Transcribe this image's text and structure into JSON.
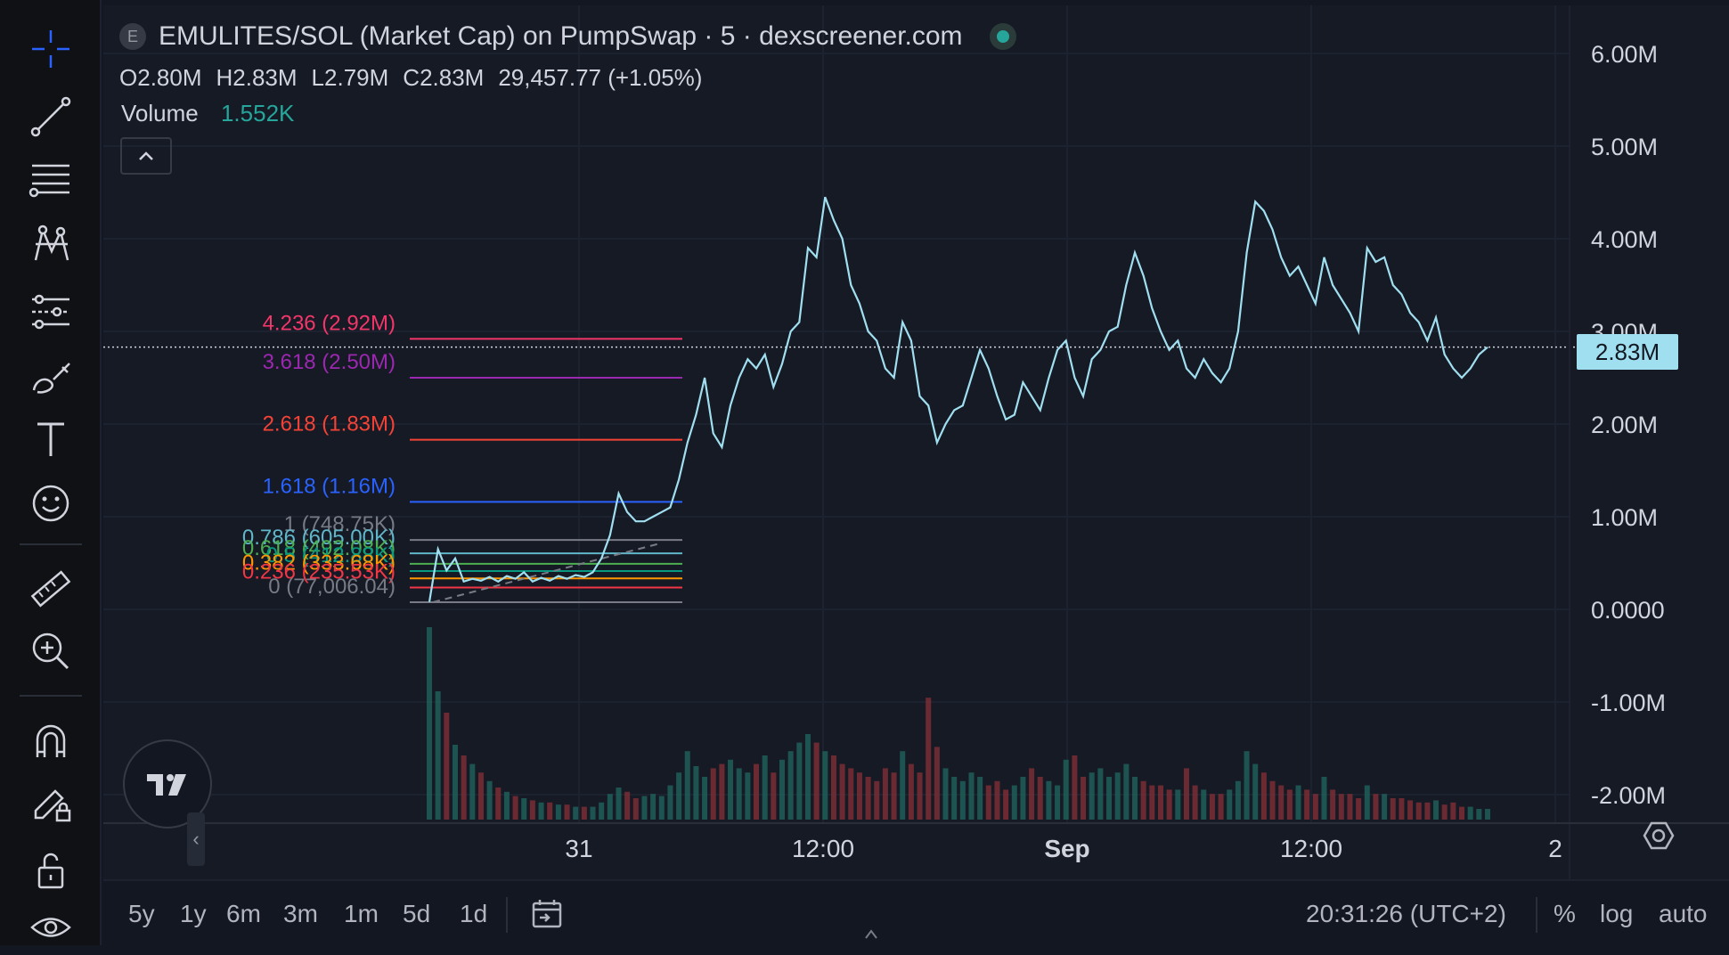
{
  "legend": {
    "badge": "E",
    "title": "EMULITES/SOL (Market Cap) on PumpSwap · 5 · dexscreener.com",
    "status_color": "#26a69a",
    "ohlc": [
      {
        "k": "O",
        "v": "2.80M"
      },
      {
        "k": "H",
        "v": "2.83M"
      },
      {
        "k": "L",
        "v": "2.79M"
      },
      {
        "k": "C",
        "v": "2.83M"
      },
      {
        "k": "",
        "v": "29,457.77 (+1.05%)"
      }
    ],
    "volume_label": "Volume",
    "volume_value": "1.552K"
  },
  "price_axis": {
    "ticks": [
      "6.00M",
      "5.00M",
      "4.00M",
      "3.00M",
      "2.00M",
      "1.00M",
      "0.0000",
      "-1.00M",
      "-2.00M"
    ],
    "current_price": "2.83M"
  },
  "time_axis": {
    "ticks": [
      {
        "label": "31",
        "bold": false
      },
      {
        "label": "12:00",
        "bold": false
      },
      {
        "label": "Sep",
        "bold": true
      },
      {
        "label": "12:00",
        "bold": false
      },
      {
        "label": "2",
        "bold": false
      }
    ]
  },
  "fib_levels": [
    {
      "label": "4.236 (2.92M)",
      "color": "#f23669"
    },
    {
      "label": "3.618 (2.50M)",
      "color": "#9c27b0"
    },
    {
      "label": "2.618 (1.83M)",
      "color": "#f44336"
    },
    {
      "label": "1.618 (1.16M)",
      "color": "#2962ff"
    },
    {
      "label": "1 (748.75K)",
      "color": "#787b86"
    },
    {
      "label": "0.786 (605.00K)",
      "color": "#5fb7c9"
    },
    {
      "label": "0.618 (492.08K)",
      "color": "#4caf50"
    },
    {
      "label": "0.5 (412.88K)",
      "color": "#089981"
    },
    {
      "label": "0.382 (333.68K)",
      "color": "#ff9800"
    },
    {
      "label": "0.236 (235.53K)",
      "color": "#f23645"
    },
    {
      "label": "0 (77,006.04)",
      "color": "#787b86"
    }
  ],
  "chart_data": {
    "type": "line",
    "title": "EMULITES/SOL (Market Cap) on PumpSwap · 5 · dexscreener.com",
    "x": [
      0,
      1,
      2,
      3,
      4,
      5,
      6,
      7,
      8,
      9,
      10,
      11,
      12,
      13,
      14,
      15,
      16,
      17,
      18,
      19,
      20,
      21,
      22,
      23,
      24,
      25,
      26,
      27,
      28,
      29,
      30,
      31,
      32,
      33,
      34,
      35,
      36,
      37,
      38,
      39,
      40,
      41,
      42,
      43,
      44,
      45,
      46,
      47,
      48,
      49,
      50,
      51,
      52,
      53,
      54,
      55,
      56,
      57,
      58,
      59,
      60,
      61,
      62,
      63,
      64,
      65,
      66,
      67,
      68,
      69,
      70,
      71,
      72,
      73,
      74,
      75,
      76,
      77,
      78,
      79,
      80,
      81,
      82,
      83,
      84,
      85,
      86,
      87,
      88,
      89,
      90,
      91,
      92,
      93,
      94,
      95,
      96,
      97,
      98,
      99,
      100,
      101,
      102,
      103,
      104,
      105,
      106,
      107,
      108,
      109,
      110,
      111,
      112,
      113,
      114,
      115,
      116,
      117,
      118,
      119,
      120,
      121,
      122,
      123
    ],
    "series": [
      {
        "values": [
          0.08,
          0.65,
          0.42,
          0.55,
          0.3,
          0.33,
          0.31,
          0.35,
          0.3,
          0.36,
          0.33,
          0.4,
          0.3,
          0.34,
          0.31,
          0.36,
          0.33,
          0.37,
          0.35,
          0.4,
          0.55,
          0.8,
          1.25,
          1.05,
          0.95,
          0.95,
          1.0,
          1.05,
          1.1,
          1.4,
          1.8,
          2.1,
          2.5,
          1.9,
          1.75,
          2.2,
          2.5,
          2.7,
          2.6,
          2.75,
          2.4,
          2.65,
          3.0,
          3.1,
          3.9,
          3.8,
          4.45,
          4.2,
          4.0,
          3.5,
          3.3,
          3.0,
          2.9,
          2.6,
          2.5,
          3.1,
          2.9,
          2.3,
          2.2,
          1.8,
          2.0,
          2.15,
          2.2,
          2.5,
          2.8,
          2.6,
          2.3,
          2.05,
          2.1,
          2.45,
          2.3,
          2.15,
          2.5,
          2.8,
          2.9,
          2.5,
          2.3,
          2.7,
          2.8,
          3.0,
          3.05,
          3.5,
          3.85,
          3.6,
          3.25,
          3.0,
          2.8,
          2.9,
          2.6,
          2.5,
          2.7,
          2.55,
          2.45,
          2.6,
          3.0,
          3.85,
          4.4,
          4.3,
          4.1,
          3.8,
          3.6,
          3.7,
          3.5,
          3.3,
          3.8,
          3.5,
          3.35,
          3.2,
          3.0,
          3.9,
          3.75,
          3.8,
          3.5,
          3.4,
          3.2,
          3.1,
          2.9,
          3.15,
          2.75,
          2.6,
          2.5,
          2.6,
          2.75,
          2.83
        ]
      }
    ],
    "volume": [
      9,
      6,
      5,
      3.5,
      3,
      2.6,
      2.2,
      1.8,
      1.5,
      1.3,
      1.1,
      1.0,
      0.9,
      0.8,
      0.8,
      0.7,
      0.7,
      0.6,
      0.6,
      0.6,
      0.8,
      1.2,
      1.5,
      1.3,
      1.0,
      1.1,
      1.2,
      1.1,
      1.6,
      2.2,
      3.2,
      2.5,
      2.0,
      2.4,
      2.6,
      2.8,
      2.4,
      2.2,
      2.6,
      3.0,
      2.2,
      2.8,
      3.2,
      3.6,
      4.0,
      3.6,
      3.2,
      3.0,
      2.6,
      2.4,
      2.2,
      2.0,
      1.8,
      2.4,
      2.2,
      3.2,
      2.6,
      2.2,
      5.7,
      3.4,
      2.4,
      2.0,
      1.8,
      2.2,
      2.0,
      1.6,
      1.8,
      1.4,
      1.6,
      2.0,
      2.4,
      2.0,
      1.8,
      1.6,
      2.8,
      3.0,
      2.0,
      2.2,
      2.4,
      2.0,
      2.2,
      2.6,
      2.0,
      1.8,
      1.6,
      1.6,
      1.4,
      1.4,
      2.4,
      1.6,
      1.4,
      1.2,
      1.2,
      1.4,
      1.8,
      3.2,
      2.6,
      2.2,
      1.8,
      1.6,
      1.4,
      1.6,
      1.4,
      1.2,
      2.0,
      1.4,
      1.2,
      1.2,
      1.0,
      1.6,
      1.2,
      1.2,
      1.0,
      1.0,
      0.9,
      0.8,
      0.8,
      0.9,
      0.7,
      0.8,
      0.6,
      0.6,
      0.5,
      0.5
    ],
    "ylim": [
      -2.35,
      6.4
    ],
    "fib_values": [
      2.92,
      2.5,
      1.83,
      1.16,
      0.74875,
      0.605,
      0.49208,
      0.41288,
      0.33368,
      0.23553,
      0.077006
    ]
  },
  "ranges": [
    "5y",
    "1y",
    "6m",
    "3m",
    "1m",
    "5d",
    "1d"
  ],
  "clock": "20:31:26 (UTC+2)",
  "scale_options": [
    "%",
    "log",
    "auto"
  ]
}
